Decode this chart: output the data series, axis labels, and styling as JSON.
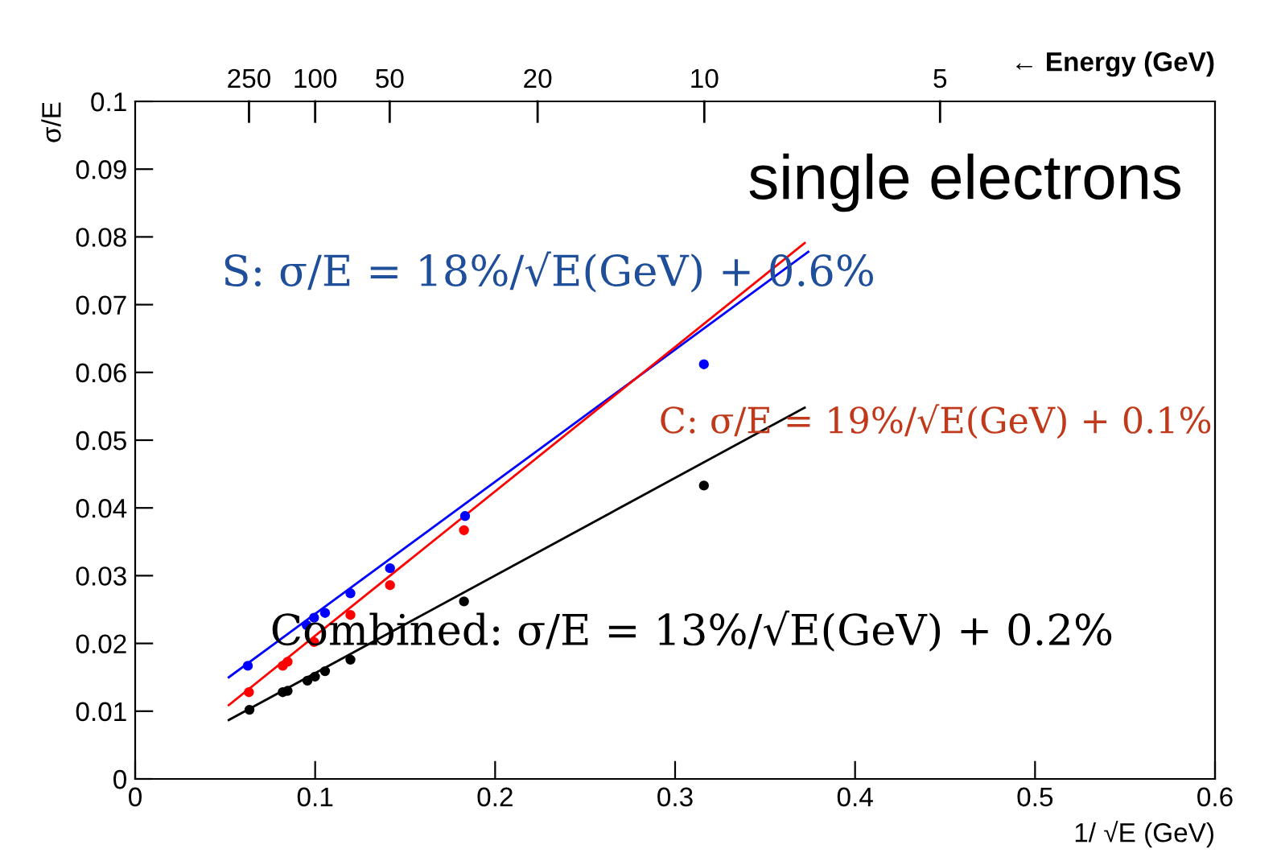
{
  "chart_data": {
    "type": "scatter",
    "xlabel": "1/ √E (GeV)",
    "ylabel": "σ/E",
    "x2label": "← Energy (GeV)",
    "xlim": [
      0,
      0.6
    ],
    "xticks": [
      0,
      0.1,
      0.2,
      0.3,
      0.4,
      0.5,
      0.6
    ],
    "ylim": [
      0,
      0.1
    ],
    "yticks": [
      0,
      0.01,
      0.02,
      0.03,
      0.04,
      0.05,
      0.06,
      0.07,
      0.08,
      0.09,
      0.1
    ],
    "grid": false,
    "legend": false,
    "marker": "circle",
    "series": [
      {
        "color": "#0000ff",
        "x": [
          0.0626,
          0.0953,
          0.0994,
          0.1055,
          0.1196,
          0.1416,
          0.1833,
          0.316
        ],
        "values": [
          0.0167,
          0.0227,
          0.0238,
          0.0245,
          0.0274,
          0.0311,
          0.0388,
          0.0612
        ]
      },
      {
        "color": "#ff0000",
        "x": [
          0.0632,
          0.082,
          0.0847,
          0.0994,
          0.1196,
          0.1416,
          0.1827
        ],
        "values": [
          0.0128,
          0.0167,
          0.0173,
          0.0202,
          0.0242,
          0.0286,
          0.0367
        ]
      },
      {
        "color": "#000000",
        "x": [
          0.0635,
          0.082,
          0.0847,
          0.0957,
          0.0999,
          0.1055,
          0.1196,
          0.1827,
          0.316
        ],
        "values": [
          0.0102,
          0.0128,
          0.013,
          0.0145,
          0.0151,
          0.0159,
          0.0176,
          0.0262,
          0.0433
        ]
      },
      {
        "type": "line",
        "marker": "none",
        "color": "#0000ff",
        "x": [
          0.052,
          0.374
        ],
        "values": [
          0.015,
          0.0778
        ]
      },
      {
        "type": "line",
        "marker": "none",
        "color": "#ff0000",
        "x": [
          0.052,
          0.372
        ],
        "values": [
          0.0109,
          0.0791
        ]
      },
      {
        "type": "line",
        "marker": "none",
        "color": "#000000",
        "x": [
          0.052,
          0.372
        ],
        "values": [
          0.0087,
          0.0548
        ]
      }
    ],
    "annotations": [
      "single electrons",
      "S: σ/E = 18%/√E(GeV) + 0.6%",
      "C: σ/E = 19%/√E(GeV) + 0.1%",
      "Combined: σ/E = 13%/√E(GeV) + 0.2%",
      "250",
      "100",
      "50",
      "20",
      "10",
      "5"
    ]
  }
}
